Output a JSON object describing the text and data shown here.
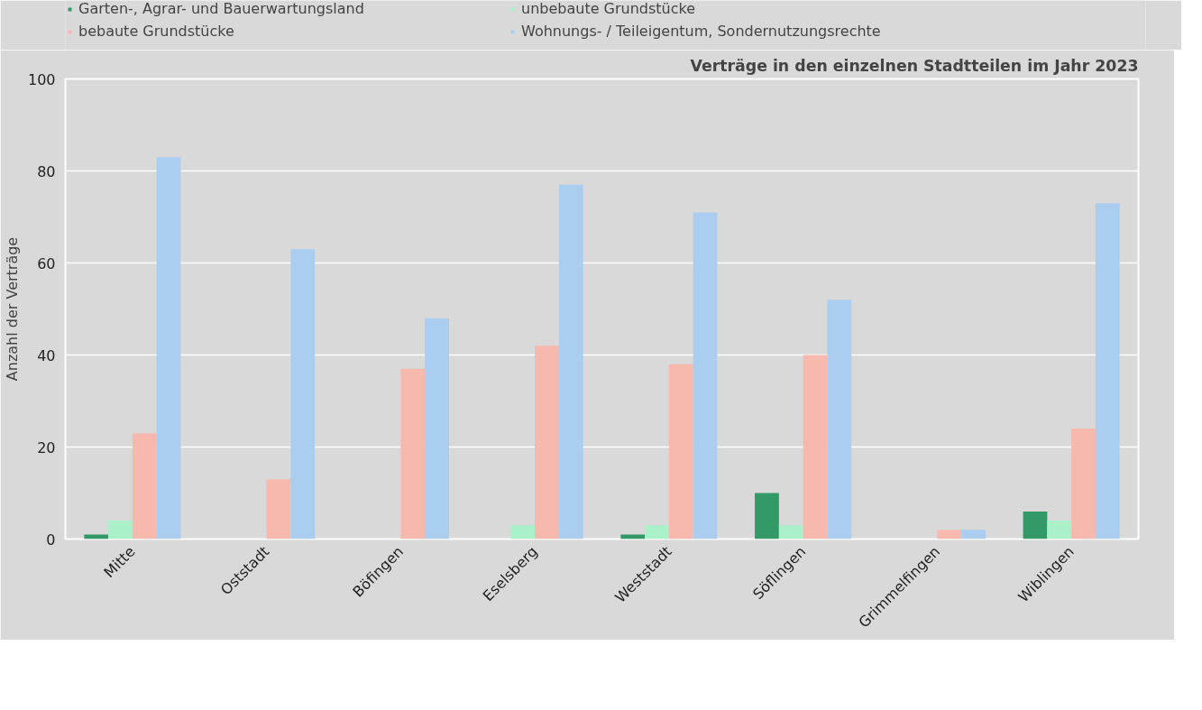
{
  "chart_data": {
    "type": "bar",
    "title": "Verträge in den einzelnen Stadtteilen im Jahr 2023",
    "ylabel": "Anzahl der Verträge",
    "categories": [
      "Mitte",
      "Oststadt",
      "Böfingen",
      "Eselsberg",
      "Weststadt",
      "Söflingen",
      "Grimmelfingen",
      "Wiblingen"
    ],
    "series": [
      {
        "name": "Garten-, Agrar- und Bauerwartungsland",
        "color": "#339966",
        "values": [
          1,
          0,
          0,
          0,
          1,
          10,
          0,
          6
        ]
      },
      {
        "name": "unbebaute Grundstücke",
        "color": "#aaf0c8",
        "values": [
          4,
          0,
          0,
          3,
          3,
          3,
          0,
          4
        ]
      },
      {
        "name": "bebaute Grundstücke",
        "color": "#f7b8ad",
        "values": [
          23,
          13,
          37,
          42,
          38,
          40,
          2,
          24
        ]
      },
      {
        "name": "Wohnungs- / Teileigentum, Sondernutzungsrechte",
        "color": "#aacdf0",
        "values": [
          83,
          63,
          48,
          77,
          71,
          52,
          2,
          73
        ]
      }
    ],
    "ylim": [
      0,
      100
    ],
    "yticks": [
      0,
      20,
      40,
      60,
      80,
      100
    ],
    "grid": "y",
    "legend": "top"
  }
}
